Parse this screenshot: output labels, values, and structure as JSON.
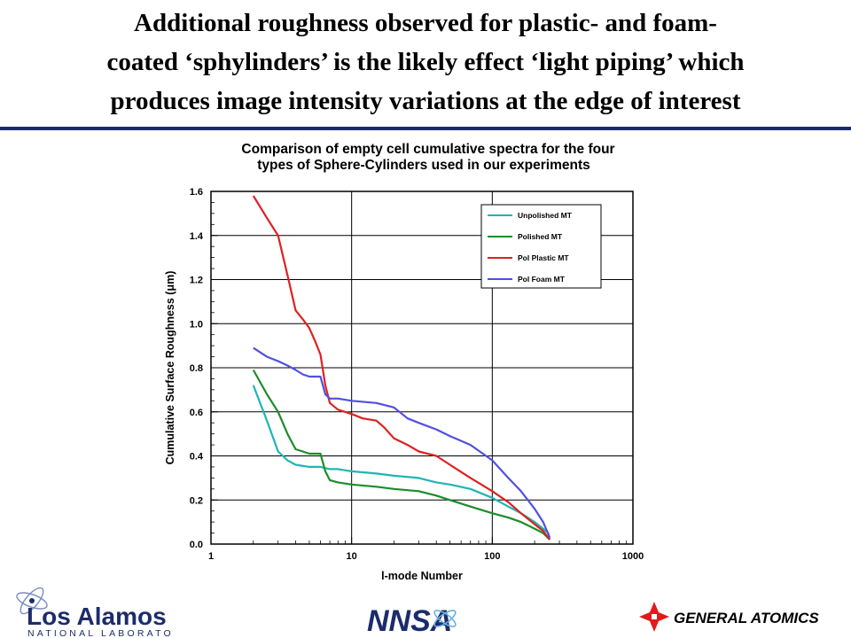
{
  "slide": {
    "title_lines": [
      "Additional roughness observed for plastic- and foam-",
      "coated ‘sphylinders’ is the likely effect ‘light piping’ which",
      "produces image intensity variations at the edge of interest"
    ]
  },
  "chart_data": {
    "type": "line",
    "title_lines": [
      "Comparison of empty cell cumulative spectra for the four",
      "types of Sphere-Cylinders used in our experiments"
    ],
    "xlabel": "l-mode Number",
    "ylabel": "Cumulative Surface Roughness  (μm)",
    "x_scale": "log",
    "xlim": [
      1,
      1000
    ],
    "ylim": [
      0.0,
      1.6
    ],
    "x_ticks": [
      1,
      10,
      100,
      1000
    ],
    "y_ticks": [
      "0.0",
      "0.2",
      "0.4",
      "0.6",
      "0.8",
      "1.0",
      "1.2",
      "1.4",
      "1.6"
    ],
    "grid": true,
    "legend_position": "top-right",
    "series": [
      {
        "name": "Unpolished MT",
        "color": "#1fb5b5",
        "x": [
          2,
          2.5,
          3,
          3.5,
          4,
          5,
          6,
          7,
          8,
          10,
          15,
          20,
          30,
          40,
          50,
          70,
          100,
          130,
          160,
          200,
          230,
          250,
          256
        ],
        "y": [
          0.72,
          0.56,
          0.42,
          0.38,
          0.36,
          0.35,
          0.35,
          0.34,
          0.34,
          0.33,
          0.32,
          0.31,
          0.3,
          0.28,
          0.27,
          0.25,
          0.21,
          0.17,
          0.14,
          0.1,
          0.07,
          0.05,
          0.02
        ]
      },
      {
        "name": "Polished MT",
        "color": "#1c8c2a",
        "x": [
          2,
          2.5,
          3,
          3.5,
          4,
          4.5,
          5,
          6,
          6.5,
          7,
          8,
          10,
          15,
          20,
          30,
          40,
          50,
          70,
          100,
          130,
          160,
          200,
          230,
          256
        ],
        "y": [
          0.79,
          0.68,
          0.6,
          0.5,
          0.43,
          0.42,
          0.41,
          0.41,
          0.33,
          0.29,
          0.28,
          0.27,
          0.26,
          0.25,
          0.24,
          0.22,
          0.2,
          0.17,
          0.14,
          0.12,
          0.1,
          0.07,
          0.05,
          0.02
        ]
      },
      {
        "name": "Pol Plastic MT",
        "color": "#e02020",
        "x": [
          2,
          2.5,
          3,
          3.5,
          4,
          4.5,
          5,
          5.5,
          6,
          6.5,
          7,
          8,
          10,
          12,
          15,
          17,
          20,
          25,
          30,
          40,
          50,
          70,
          100,
          130,
          160,
          200,
          230,
          256
        ],
        "y": [
          1.58,
          1.48,
          1.4,
          1.22,
          1.06,
          1.02,
          0.98,
          0.92,
          0.86,
          0.72,
          0.64,
          0.61,
          0.59,
          0.57,
          0.56,
          0.53,
          0.48,
          0.45,
          0.42,
          0.4,
          0.36,
          0.3,
          0.24,
          0.19,
          0.14,
          0.09,
          0.06,
          0.02
        ]
      },
      {
        "name": "Pol Foam MT",
        "color": "#5050e0",
        "x": [
          2,
          2.5,
          3,
          3.5,
          4,
          4.5,
          5,
          5.5,
          6,
          6.5,
          7,
          8,
          10,
          15,
          20,
          25,
          30,
          40,
          50,
          70,
          100,
          130,
          160,
          200,
          230,
          256
        ],
        "y": [
          0.89,
          0.85,
          0.83,
          0.81,
          0.79,
          0.77,
          0.76,
          0.76,
          0.76,
          0.68,
          0.66,
          0.66,
          0.65,
          0.64,
          0.62,
          0.57,
          0.55,
          0.52,
          0.49,
          0.45,
          0.38,
          0.3,
          0.24,
          0.16,
          0.1,
          0.03
        ]
      }
    ]
  },
  "footer": {
    "left_logo_text": "Los Alamos",
    "left_logo_subtext": "NATIONAL LABORATORY",
    "center_logo_text": "NNSA",
    "right_logo_text": "GENERAL ATOMICS"
  },
  "colors": {
    "title_rule": "#1e2a6e",
    "logo_blue": "#1c2c6a",
    "ga_red": "#e01b1b"
  }
}
